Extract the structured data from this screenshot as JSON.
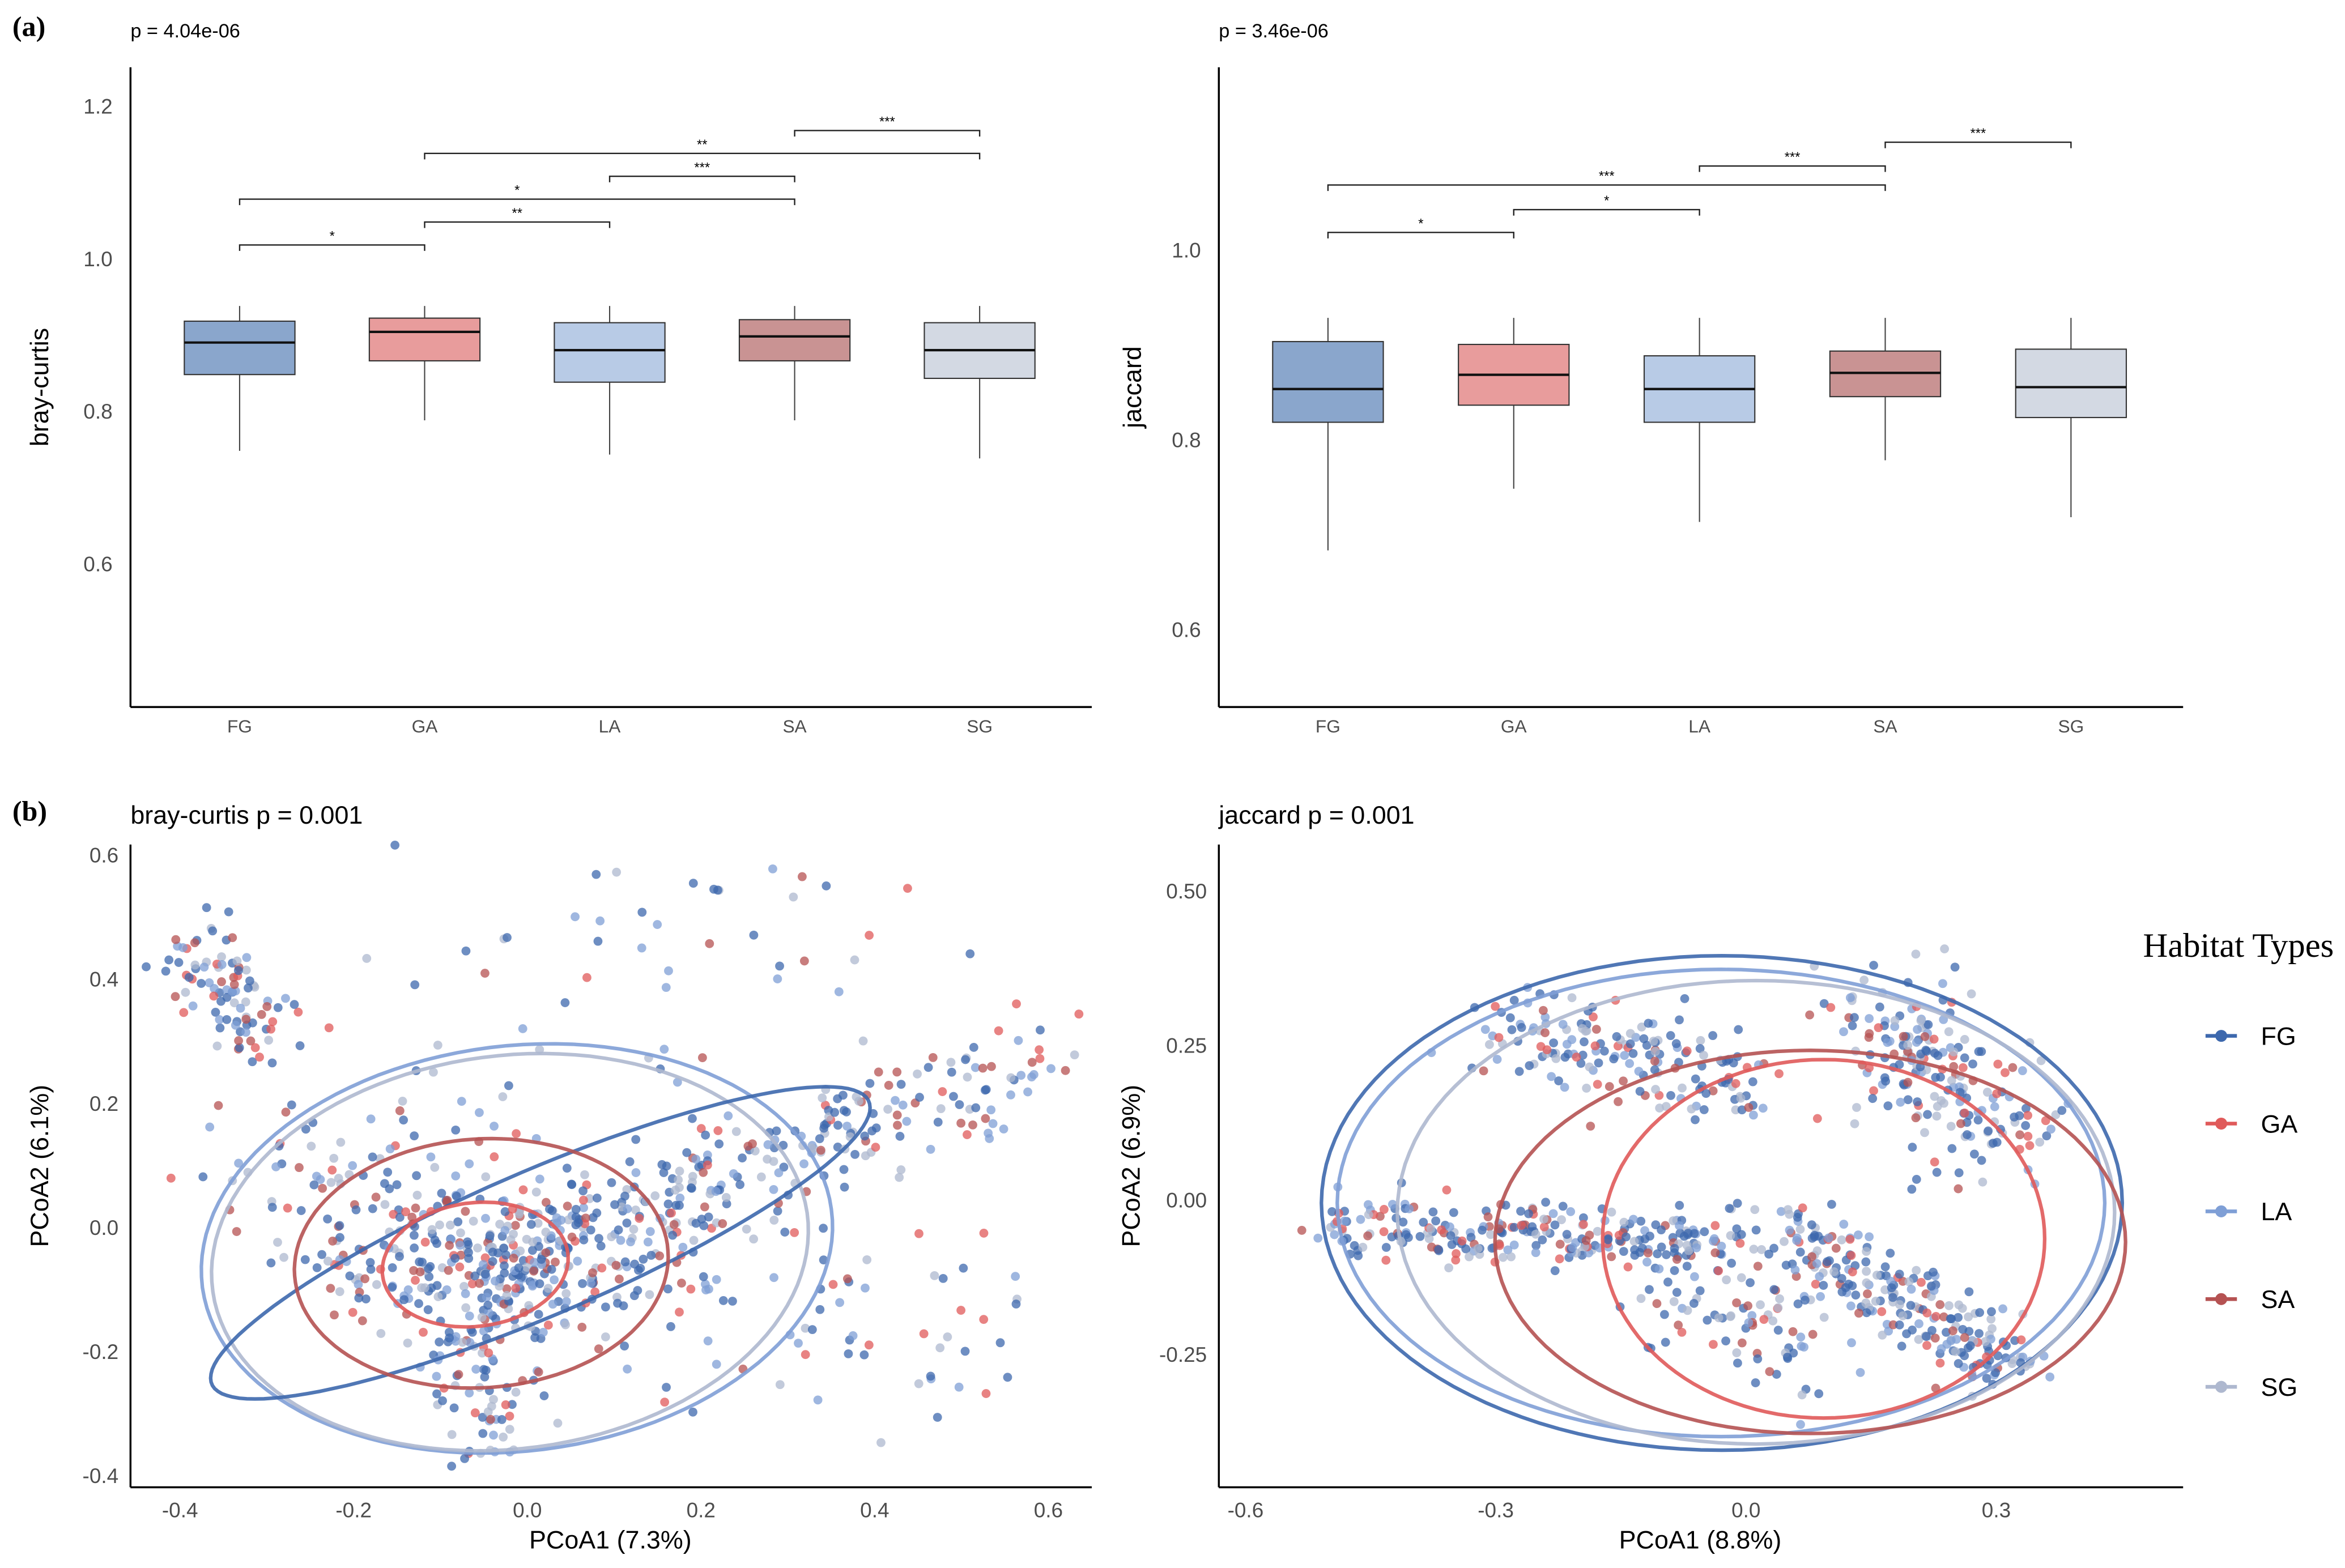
{
  "panel_labels": {
    "a": "(a)",
    "b": "(b)"
  },
  "colors": {
    "FG": "#3d68ad",
    "GA": "#e05a5a",
    "LA": "#7f9fd6",
    "SA": "#b55252",
    "SG": "#aeb8cf"
  },
  "box_fills": {
    "FG": "#8aa6cc",
    "GA": "#e89c9c",
    "LA": "#b8cbe6",
    "SA": "#c99393",
    "SG": "#d3d9e3"
  },
  "legend": {
    "title": "Habitat Types",
    "items": [
      "FG",
      "GA",
      "LA",
      "SA",
      "SG"
    ]
  },
  "chart_data": [
    {
      "type": "box",
      "title": "p = 4.04e-06",
      "xlabel": "",
      "ylabel": "bray-curtis",
      "categories": [
        "FG",
        "GA",
        "LA",
        "SA",
        "SG"
      ],
      "ylim": [
        0.414,
        1.253
      ],
      "yticks": [
        "0.6",
        "0.8",
        "1.0",
        "1.2"
      ],
      "grid": false,
      "boxes": [
        {
          "min": 0.75,
          "q1": 0.85,
          "median": 0.892,
          "q3": 0.92,
          "max": 0.94
        },
        {
          "min": 0.79,
          "q1": 0.868,
          "median": 0.906,
          "q3": 0.924,
          "max": 0.94
        },
        {
          "min": 0.745,
          "q1": 0.84,
          "median": 0.882,
          "q3": 0.918,
          "max": 0.94
        },
        {
          "min": 0.79,
          "q1": 0.868,
          "median": 0.9,
          "q3": 0.922,
          "max": 0.94
        },
        {
          "min": 0.74,
          "q1": 0.845,
          "median": 0.882,
          "q3": 0.918,
          "max": 0.94
        }
      ],
      "comparisons": [
        {
          "from": "FG",
          "to": "GA",
          "y": 1.02,
          "label": "*"
        },
        {
          "from": "GA",
          "to": "LA",
          "y": 1.05,
          "label": "**"
        },
        {
          "from": "FG",
          "to": "SA",
          "y": 1.08,
          "label": "*"
        },
        {
          "from": "LA",
          "to": "SA",
          "y": 1.11,
          "label": "***"
        },
        {
          "from": "GA",
          "to": "SG",
          "y": 1.14,
          "label": "**"
        },
        {
          "from": "SA",
          "to": "SG",
          "y": 1.17,
          "label": "***"
        }
      ]
    },
    {
      "type": "box",
      "title": "p = 3.46e-06",
      "xlabel": "",
      "ylabel": "jaccard",
      "categories": [
        "FG",
        "GA",
        "LA",
        "SA",
        "SG"
      ],
      "ylim": [
        0.52,
        1.194
      ],
      "yticks": [
        "0.6",
        "0.8",
        "1.0"
      ],
      "grid": false,
      "boxes": [
        {
          "min": 0.685,
          "q1": 0.82,
          "median": 0.855,
          "q3": 0.905,
          "max": 0.93
        },
        {
          "min": 0.75,
          "q1": 0.838,
          "median": 0.87,
          "q3": 0.902,
          "max": 0.93
        },
        {
          "min": 0.715,
          "q1": 0.82,
          "median": 0.855,
          "q3": 0.89,
          "max": 0.93
        },
        {
          "min": 0.78,
          "q1": 0.847,
          "median": 0.872,
          "q3": 0.895,
          "max": 0.93
        },
        {
          "min": 0.72,
          "q1": 0.825,
          "median": 0.857,
          "q3": 0.897,
          "max": 0.93
        }
      ],
      "comparisons": [
        {
          "from": "FG",
          "to": "GA",
          "y": 1.02,
          "label": "*"
        },
        {
          "from": "GA",
          "to": "LA",
          "y": 1.044,
          "label": "*"
        },
        {
          "from": "FG",
          "to": "SA",
          "y": 1.07,
          "label": "***"
        },
        {
          "from": "LA",
          "to": "SA",
          "y": 1.09,
          "label": "***"
        },
        {
          "from": "SA",
          "to": "SG",
          "y": 1.115,
          "label": "***"
        }
      ]
    },
    {
      "type": "scatter",
      "title": "bray-curtis p = 0.001",
      "xlabel": "PCoA1 (7.3%)",
      "ylabel": "PCoA2 (6.1%)",
      "xlim": [
        -0.457,
        0.65
      ],
      "ylim": [
        -0.419,
        0.617
      ],
      "xticks": [
        "-0.4",
        "-0.2",
        "0.0",
        "0.2",
        "0.4",
        "0.6"
      ],
      "yticks": [
        "-0.4",
        "-0.2",
        "0.0",
        "0.2",
        "0.4",
        "0.6"
      ],
      "ellipses": [
        {
          "group": "LA",
          "center": [
            -0.012,
            -0.034
          ],
          "u": [
            0.36,
            0.08
          ],
          "v": [
            -0.05,
            0.32
          ]
        },
        {
          "group": "SG",
          "center": [
            -0.02,
            -0.04
          ],
          "u": [
            0.34,
            0.08
          ],
          "v": [
            -0.05,
            0.31
          ]
        },
        {
          "group": "FG",
          "center": [
            0.015,
            -0.025
          ],
          "u": [
            0.375,
            0.235
          ],
          "v": [
            -0.06,
            0.09
          ]
        },
        {
          "group": "SA",
          "center": [
            -0.053,
            -0.058
          ],
          "u": [
            0.215,
            0.02
          ],
          "v": [
            -0.01,
            0.2
          ]
        },
        {
          "group": "GA",
          "center": [
            -0.06,
            -0.06
          ],
          "u": [
            0.107,
            0.01
          ],
          "v": [
            0,
            0.1
          ]
        }
      ],
      "point_clusters": [
        {
          "from": [
            -0.4,
            0.46
          ],
          "to": [
            -0.3,
            0.3
          ],
          "spread": 0.03,
          "n": 90
        },
        {
          "from": [
            -0.2,
            0.22
          ],
          "to": [
            0.35,
            0.5
          ],
          "spread": 0.12,
          "n": 70
        },
        {
          "from": [
            -0.05,
            -0.05
          ],
          "to": [
            0.6,
            0.27
          ],
          "spread": 0.04,
          "n": 260
        },
        {
          "from": [
            -0.2,
            -0.05
          ],
          "to": [
            0.1,
            -0.05
          ],
          "spread": 0.06,
          "n": 280
        },
        {
          "from": [
            -0.05,
            -0.1
          ],
          "to": [
            -0.05,
            -0.36
          ],
          "spread": 0.03,
          "n": 90
        },
        {
          "from": [
            -0.3,
            0.1
          ],
          "to": [
            0.5,
            -0.2
          ],
          "spread": 0.1,
          "n": 180
        }
      ]
    },
    {
      "type": "scatter",
      "title": "jaccard p = 0.001",
      "xlabel": "PCoA1 (8.8%)",
      "ylabel": "PCoA2 (6.9%)",
      "xlim": [
        -0.632,
        0.524
      ],
      "ylim": [
        -0.465,
        0.575
      ],
      "xticks": [
        "-0.6",
        "-0.3",
        "0.0",
        "0.3"
      ],
      "yticks": [
        "-0.25",
        "0.00",
        "0.25",
        "0.50"
      ],
      "ellipses": [
        {
          "group": "FG",
          "center": [
            -0.029,
            -0.005
          ],
          "u": [
            0.48,
            0.0
          ],
          "v": [
            0.0,
            0.4
          ]
        },
        {
          "group": "LA",
          "center": [
            -0.03,
            -0.005
          ],
          "u": [
            0.46,
            0.0
          ],
          "v": [
            0.0,
            0.378
          ]
        },
        {
          "group": "SG",
          "center": [
            0.012,
            -0.02
          ],
          "u": [
            0.43,
            0.0
          ],
          "v": [
            0.0,
            0.375
          ]
        },
        {
          "group": "SA",
          "center": [
            0.077,
            -0.068
          ],
          "u": [
            0.378,
            0.0
          ],
          "v": [
            0.0,
            0.31
          ]
        },
        {
          "group": "GA",
          "center": [
            0.093,
            -0.063
          ],
          "u": [
            0.265,
            0.0
          ],
          "v": [
            0.0,
            0.29
          ]
        }
      ],
      "point_clusters": [
        {
          "from": [
            -0.5,
            -0.04
          ],
          "to": [
            0.0,
            -0.07
          ],
          "spread": 0.025,
          "n": 260
        },
        {
          "from": [
            0.05,
            -0.05
          ],
          "to": [
            0.32,
            -0.28
          ],
          "spread": 0.03,
          "n": 230
        },
        {
          "from": [
            0.15,
            0.3
          ],
          "to": [
            0.3,
            0.1
          ],
          "spread": 0.05,
          "n": 200
        },
        {
          "from": [
            -0.3,
            0.28
          ],
          "to": [
            0.0,
            0.18
          ],
          "spread": 0.04,
          "n": 170
        },
        {
          "from": [
            -0.1,
            -0.15
          ],
          "to": [
            0.1,
            -0.25
          ],
          "spread": 0.04,
          "n": 80
        }
      ]
    }
  ]
}
